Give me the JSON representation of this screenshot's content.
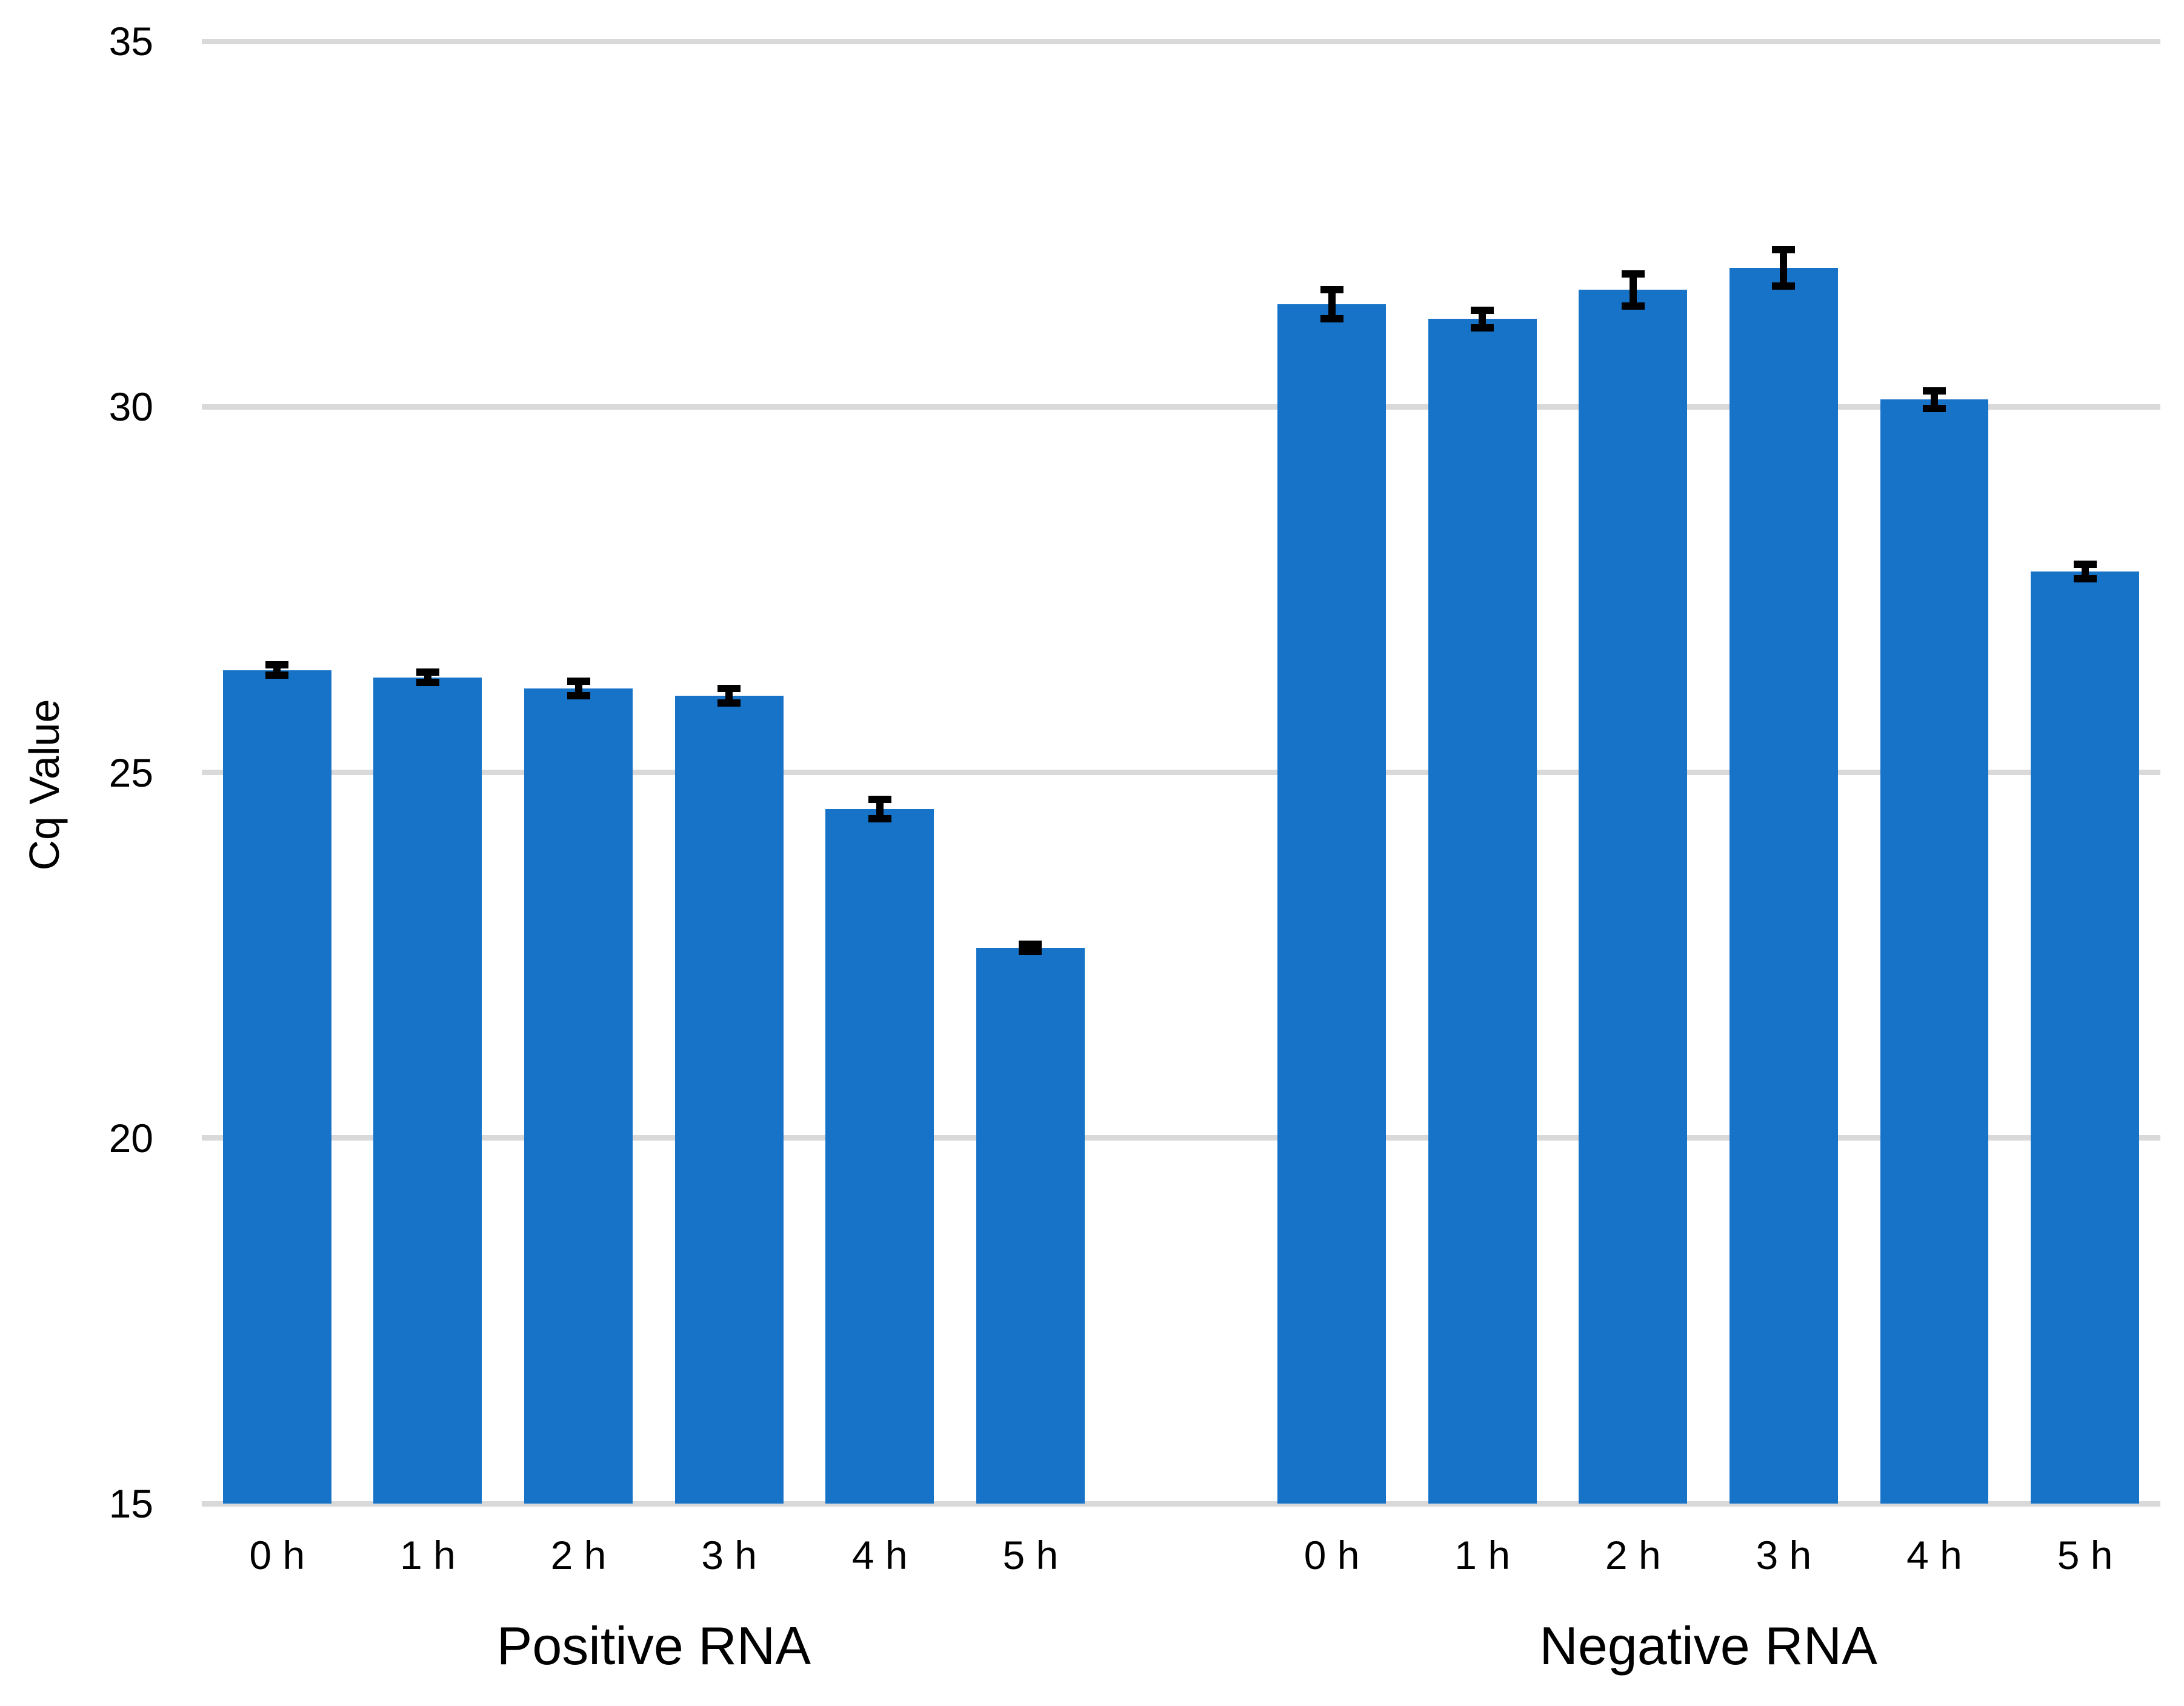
{
  "chart_data": {
    "type": "bar",
    "title": "",
    "xlabel": "",
    "ylabel": "Cq Value",
    "ylim": [
      15,
      35
    ],
    "yticks": [
      15,
      20,
      25,
      30,
      35
    ],
    "grid": "horizontal",
    "legend": "none",
    "colors": {
      "bar": "#1673C8",
      "gridline": "#D9D9D9",
      "axis_line": "#D9D9D9",
      "error_bar": "#000000",
      "text": "#000000",
      "background": "#FFFFFF"
    },
    "groups": [
      {
        "label": "Positive RNA",
        "categories": [
          "0 h",
          "1 h",
          "2 h",
          "3 h",
          "4 h",
          "5 h"
        ],
        "values": [
          26.4,
          26.3,
          26.15,
          26.05,
          24.5,
          22.6
        ],
        "errors": [
          0.07,
          0.07,
          0.1,
          0.1,
          0.13,
          0.05
        ]
      },
      {
        "label": "Negative RNA",
        "categories": [
          "0 h",
          "1 h",
          "2 h",
          "3 h",
          "4 h",
          "5 h"
        ],
        "values": [
          31.4,
          31.2,
          31.6,
          31.9,
          30.1,
          27.75
        ],
        "errors": [
          0.2,
          0.12,
          0.22,
          0.25,
          0.12,
          0.1
        ]
      }
    ]
  }
}
